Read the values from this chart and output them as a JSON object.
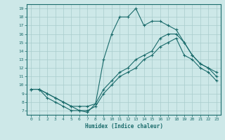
{
  "xlabel": "Humidex (Indice chaleur)",
  "background_color": "#cde8e8",
  "line_color": "#1a6b6b",
  "grid_color": "#a8cccc",
  "xlim": [
    -0.5,
    23.5
  ],
  "ylim": [
    6.5,
    19.5
  ],
  "xticks": [
    0,
    1,
    2,
    3,
    4,
    5,
    6,
    7,
    8,
    9,
    10,
    11,
    12,
    13,
    14,
    15,
    16,
    17,
    18,
    19,
    20,
    21,
    22,
    23
  ],
  "yticks": [
    7,
    8,
    9,
    10,
    11,
    12,
    13,
    14,
    15,
    16,
    17,
    18,
    19
  ],
  "line1_x": [
    0,
    1,
    2,
    3,
    4,
    5,
    6,
    7,
    8,
    9,
    10,
    11,
    12,
    13,
    14,
    15,
    16,
    17,
    18,
    19,
    20,
    21,
    22,
    23
  ],
  "line1_y": [
    9.5,
    9.5,
    8.5,
    8.0,
    7.5,
    7.0,
    7.0,
    6.8,
    7.8,
    13.0,
    16.0,
    18.0,
    18.0,
    19.0,
    17.0,
    17.5,
    17.5,
    17.0,
    16.5,
    15.0,
    13.5,
    12.5,
    12.0,
    11.5
  ],
  "line2_x": [
    0,
    1,
    2,
    3,
    4,
    5,
    6,
    7,
    8,
    9,
    10,
    11,
    12,
    13,
    14,
    15,
    16,
    17,
    18,
    19,
    20,
    21,
    22,
    23
  ],
  "line2_y": [
    9.5,
    9.5,
    9.0,
    8.5,
    8.0,
    7.5,
    7.5,
    7.5,
    7.8,
    9.5,
    10.5,
    11.5,
    12.0,
    13.0,
    13.5,
    14.0,
    15.5,
    16.0,
    16.0,
    15.0,
    13.5,
    12.5,
    12.0,
    11.0
  ],
  "line3_x": [
    0,
    1,
    2,
    3,
    4,
    5,
    6,
    7,
    8,
    9,
    10,
    11,
    12,
    13,
    14,
    15,
    16,
    17,
    18,
    19,
    20,
    21,
    22,
    23
  ],
  "line3_y": [
    9.5,
    9.5,
    9.0,
    8.5,
    8.0,
    7.5,
    7.0,
    7.0,
    7.5,
    9.0,
    10.0,
    11.0,
    11.5,
    12.0,
    13.0,
    13.5,
    14.5,
    15.0,
    15.5,
    13.5,
    13.0,
    12.0,
    11.5,
    10.5
  ]
}
